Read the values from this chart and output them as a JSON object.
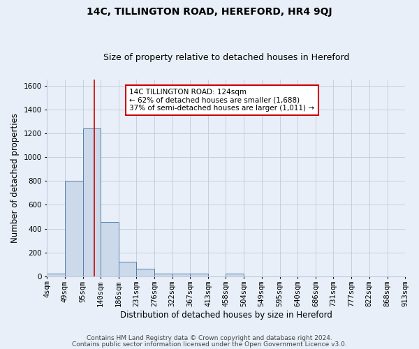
{
  "title": "14C, TILLINGTON ROAD, HEREFORD, HR4 9QJ",
  "subtitle": "Size of property relative to detached houses in Hereford",
  "xlabel": "Distribution of detached houses by size in Hereford",
  "ylabel": "Number of detached properties",
  "footer_line1": "Contains HM Land Registry data © Crown copyright and database right 2024.",
  "footer_line2": "Contains public sector information licensed under the Open Government Licence v3.0.",
  "bin_labels": [
    "4sqm",
    "49sqm",
    "95sqm",
    "140sqm",
    "186sqm",
    "231sqm",
    "276sqm",
    "322sqm",
    "367sqm",
    "413sqm",
    "458sqm",
    "504sqm",
    "549sqm",
    "595sqm",
    "640sqm",
    "686sqm",
    "731sqm",
    "777sqm",
    "822sqm",
    "868sqm",
    "913sqm"
  ],
  "bin_edges": [
    4,
    49,
    95,
    140,
    186,
    231,
    276,
    322,
    367,
    413,
    458,
    504,
    549,
    595,
    640,
    686,
    731,
    777,
    822,
    868,
    913
  ],
  "bar_heights": [
    25,
    800,
    1240,
    455,
    120,
    62,
    22,
    22,
    22,
    0,
    20,
    0,
    0,
    0,
    0,
    0,
    0,
    0,
    0,
    0
  ],
  "bar_color": "#ccd9ea",
  "bar_edge_color": "#5580aa",
  "background_color": "#e8eff8",
  "property_line_x": 124,
  "property_line_color": "#cc0000",
  "annotation_text": "14C TILLINGTON ROAD: 124sqm\n← 62% of detached houses are smaller (1,688)\n37% of semi-detached houses are larger (1,011) →",
  "annotation_box_facecolor": "#ffffff",
  "annotation_box_edgecolor": "#cc0000",
  "ylim": [
    0,
    1650
  ],
  "yticks": [
    0,
    200,
    400,
    600,
    800,
    1000,
    1200,
    1400,
    1600
  ],
  "grid_color": "#c0ccd8",
  "title_fontsize": 10,
  "subtitle_fontsize": 9,
  "axis_label_fontsize": 8.5,
  "tick_fontsize": 7.5,
  "annotation_fontsize": 7.5,
  "footer_fontsize": 6.5
}
